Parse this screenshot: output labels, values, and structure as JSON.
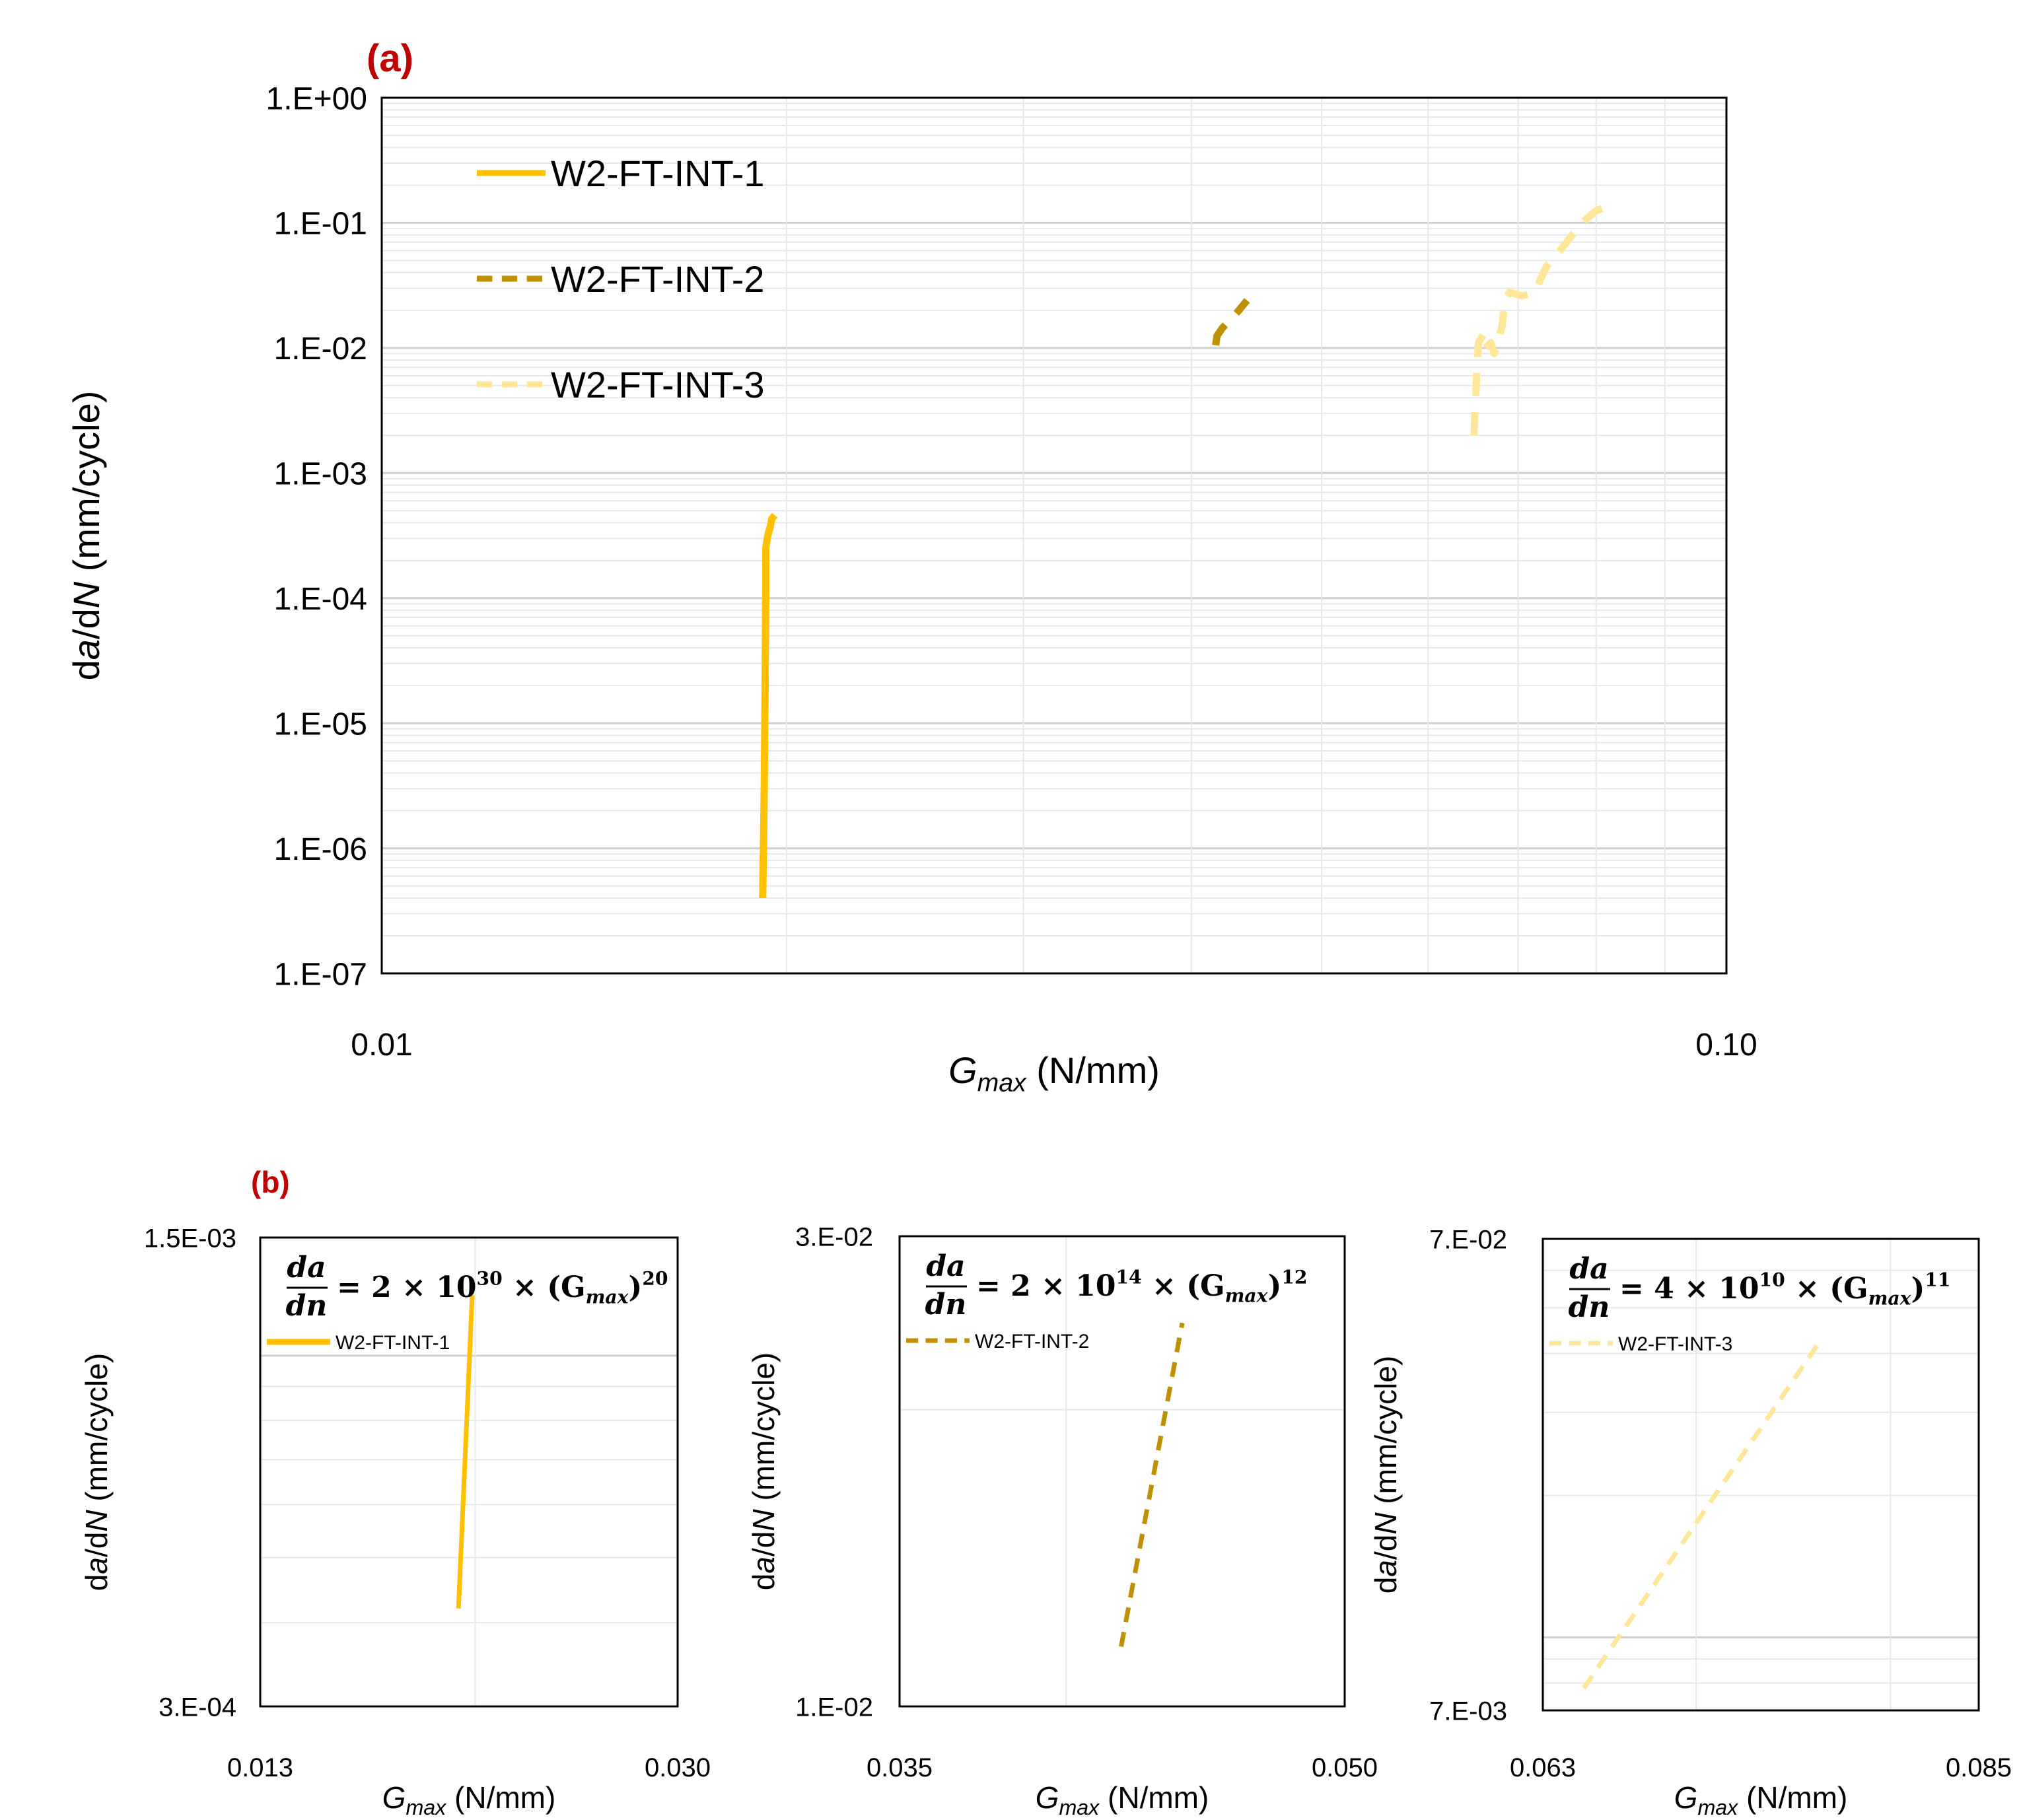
{
  "colors": {
    "series1": "#FFC000",
    "series2": "#BF9000",
    "series3": "#FFE699",
    "panel_label": "#C00000",
    "grid": "#D9D9D9",
    "frame": "#000000"
  },
  "chart_data": [
    {
      "id": "a",
      "panel_label": "(a)",
      "type": "line",
      "xscale": "log",
      "yscale": "log",
      "xlim": [
        0.01,
        0.1
      ],
      "ylim": [
        1e-07,
        1
      ],
      "xticks": [
        "0.01",
        "0.10"
      ],
      "yticks": [
        "1.E+00",
        "1.E-01",
        "1.E-02",
        "1.E-03",
        "1.E-04",
        "1.E-05",
        "1.E-06",
        "1.E-07"
      ],
      "xlabel": "G",
      "xlabel_sub": "max",
      "xlabel_unit": " (N/mm)",
      "ylabel": "da/dN (mm/cycle)",
      "legend": {
        "position": "top-left",
        "entries": [
          "W2-FT-INT-1",
          "W2-FT-INT-2",
          "W2-FT-INT-3"
        ]
      },
      "series": [
        {
          "name": "W2-FT-INT-1",
          "style": "solid",
          "points": [
            [
              0.0192,
              4e-07
            ],
            [
              0.01922,
              8e-07
            ],
            [
              0.01925,
              3e-06
            ],
            [
              0.01928,
              2e-05
            ],
            [
              0.0193,
              0.00012
            ],
            [
              0.0193,
              0.00025
            ],
            [
              0.01935,
              0.0003
            ],
            [
              0.0194,
              0.00034
            ],
            [
              0.01945,
              0.00037
            ],
            [
              0.0195,
              0.00043
            ],
            [
              0.0196,
              0.00046
            ]
          ]
        },
        {
          "name": "W2-FT-INT-2",
          "style": "dashed",
          "points": [
            [
              0.0417,
              0.0105
            ],
            [
              0.0418,
              0.0125
            ],
            [
              0.0422,
              0.0145
            ],
            [
              0.0428,
              0.017
            ],
            [
              0.0434,
              0.02
            ],
            [
              0.044,
              0.024
            ]
          ]
        },
        {
          "name": "W2-FT-INT-3",
          "style": "dashed",
          "points": [
            [
              0.0649,
              0.002
            ],
            [
              0.0651,
              0.004
            ],
            [
              0.0652,
              0.006
            ],
            [
              0.0654,
              0.011
            ],
            [
              0.066,
              0.013
            ],
            [
              0.0662,
              0.01
            ],
            [
              0.0668,
              0.011
            ],
            [
              0.0672,
              0.009
            ],
            [
              0.0676,
              0.011
            ],
            [
              0.0681,
              0.015
            ],
            [
              0.0684,
              0.024
            ],
            [
              0.069,
              0.028
            ],
            [
              0.0705,
              0.026
            ],
            [
              0.072,
              0.028
            ],
            [
              0.0735,
              0.045
            ],
            [
              0.0752,
              0.06
            ],
            [
              0.0768,
              0.08
            ],
            [
              0.0785,
              0.105
            ],
            [
              0.08,
              0.125
            ],
            [
              0.0808,
              0.13
            ]
          ]
        }
      ]
    },
    {
      "id": "b1",
      "panel_label": "(b)",
      "type": "line",
      "xscale": "log",
      "yscale": "log",
      "xlim": [
        0.013,
        0.03
      ],
      "ylim": [
        0.0003,
        0.0015
      ],
      "xticks": [
        "0.013",
        "0.030"
      ],
      "yticks": [
        "1.5E-03",
        "3.E-04"
      ],
      "xlabel": "G",
      "xlabel_sub": "max",
      "xlabel_unit": " (N/mm)",
      "ylabel": "da/dN (mm/cycle)",
      "equation": {
        "lhs_num": "da",
        "lhs_den": "dn",
        "coef": "= 2 × 10",
        "exp1": "30",
        "mid": " × (G",
        "sub": "max",
        "close": ")",
        "exp2": "20"
      },
      "legend": {
        "position": "top-left",
        "entries": [
          "W2-FT-INT-1"
        ]
      },
      "series": [
        {
          "name": "W2-FT-INT-1",
          "style": "solid",
          "points": [
            [
              0.01934,
              0.00042
            ],
            [
              0.01988,
              0.00123
            ]
          ]
        }
      ]
    },
    {
      "id": "b2",
      "type": "line",
      "xscale": "log",
      "yscale": "log",
      "xlim": [
        0.035,
        0.05
      ],
      "ylim": [
        0.01,
        0.03
      ],
      "xticks": [
        "0.035",
        "0.050"
      ],
      "yticks": [
        "3.E-02",
        "1.E-02"
      ],
      "xlabel": "G",
      "xlabel_sub": "max",
      "xlabel_unit": " (N/mm)",
      "ylabel": "da/dN (mm/cycle)",
      "equation": {
        "lhs_num": "da",
        "lhs_den": "dn",
        "coef": "= 2 × 10",
        "exp1": "14",
        "mid": " × (G",
        "sub": "max",
        "close": ")",
        "exp2": "12"
      },
      "legend": {
        "position": "top-left",
        "entries": [
          "W2-FT-INT-2"
        ]
      },
      "series": [
        {
          "name": "W2-FT-INT-2",
          "style": "dashed",
          "points": [
            [
              0.0418,
              0.0115
            ],
            [
              0.0439,
              0.0245
            ]
          ]
        }
      ]
    },
    {
      "id": "b3",
      "type": "line",
      "xscale": "log",
      "yscale": "log",
      "xlim": [
        0.063,
        0.085
      ],
      "ylim": [
        0.007,
        0.07
      ],
      "xticks": [
        "0.063",
        "0.085"
      ],
      "yticks": [
        "7.E-02",
        "7.E-03"
      ],
      "xlabel": "G",
      "xlabel_sub": "max",
      "xlabel_unit": " (N/mm)",
      "ylabel": "da/dN (mm/cycle)",
      "equation": {
        "lhs_num": "da",
        "lhs_den": "dn",
        "coef": "= 4 × 10",
        "exp1": "10",
        "mid": " × (G",
        "sub": "max",
        "close": ")",
        "exp2": "11"
      },
      "legend": {
        "position": "top-left",
        "entries": [
          "W2-FT-INT-3"
        ]
      },
      "series": [
        {
          "name": "W2-FT-INT-3",
          "style": "dashed",
          "points": [
            [
              0.0648,
              0.0078
            ],
            [
              0.0763,
              0.043
            ]
          ]
        }
      ]
    }
  ]
}
